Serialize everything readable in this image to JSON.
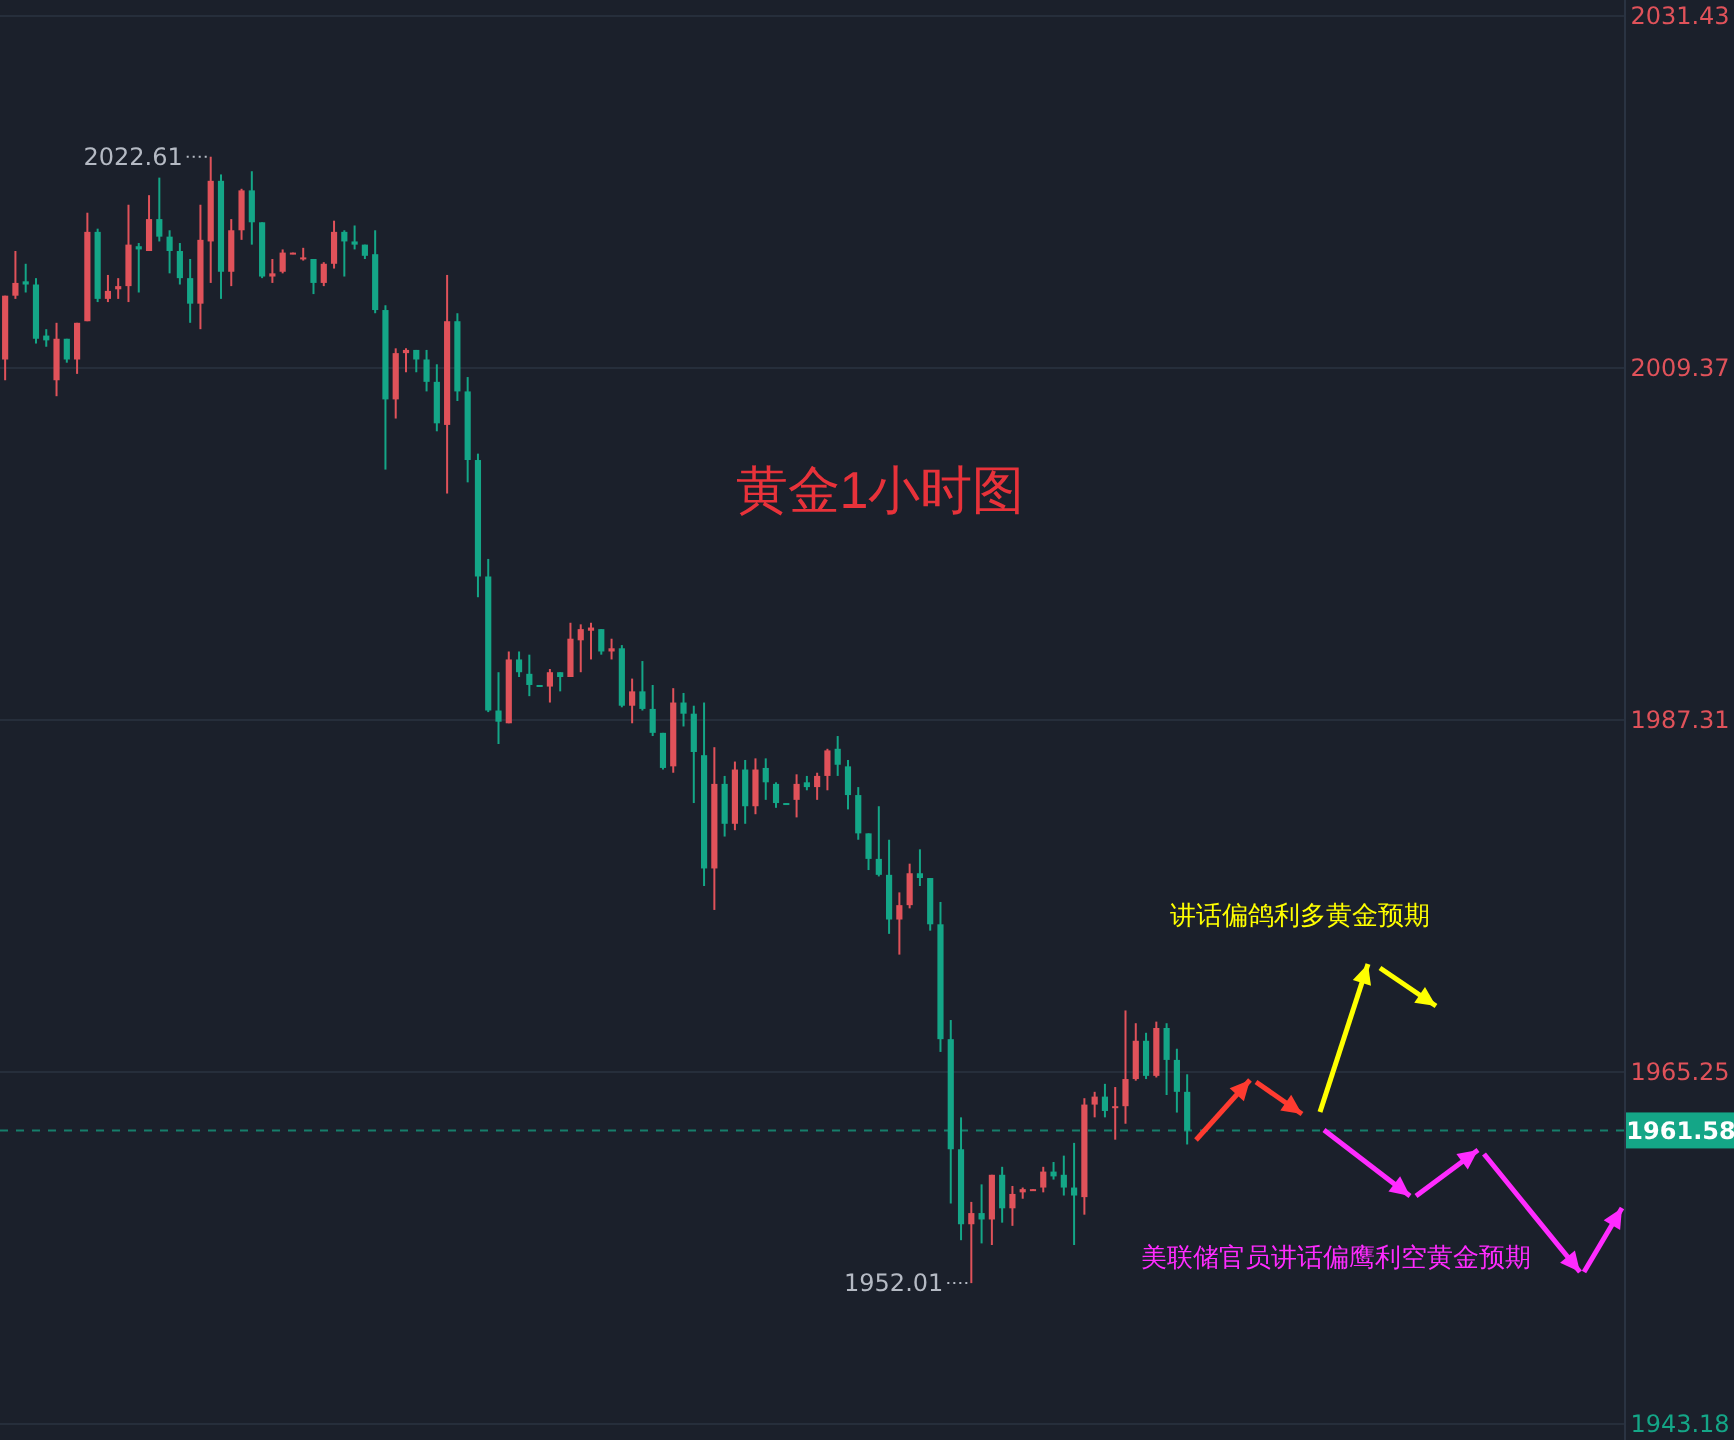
{
  "chart_data": {
    "type": "candlestick",
    "title": "黄金1小时图",
    "categories": [
      null,
      null,
      null,
      null,
      null,
      null,
      null,
      null,
      null,
      null,
      null,
      null,
      null,
      null,
      null,
      null,
      null,
      null,
      null,
      null,
      null,
      null,
      null,
      null,
      null,
      null,
      null,
      null,
      null,
      null,
      null,
      null,
      null,
      null,
      null,
      null,
      null,
      null,
      null,
      null,
      null,
      null,
      null,
      null,
      null,
      null,
      null,
      null,
      null,
      null,
      null,
      null,
      null,
      null,
      null,
      null,
      null,
      null,
      null,
      null,
      null,
      null,
      null,
      null,
      null,
      null,
      null,
      null,
      null,
      null,
      null,
      null,
      null,
      null,
      null,
      null,
      null,
      null,
      null,
      null,
      null,
      null,
      null,
      null,
      null,
      null,
      null,
      null,
      null,
      null,
      null,
      null,
      null,
      null,
      null,
      null,
      null,
      null,
      null,
      null,
      null,
      null,
      null,
      null,
      null,
      null,
      null,
      null,
      null,
      null,
      null,
      null,
      null,
      null,
      null,
      null,
      null,
      null,
      null,
      null,
      null,
      null,
      null,
      null,
      null,
      null,
      null,
      null,
      null,
      null,
      null,
      null,
      null,
      null,
      null,
      null,
      null,
      null,
      null,
      null,
      null,
      null,
      null,
      null,
      null,
      null,
      null,
      null,
      null,
      null,
      null,
      null,
      null,
      null,
      null,
      null,
      null,
      null
    ],
    "ohlc": [
      [
        2009.9,
        2013.9,
        2008.6,
        2013.9
      ],
      [
        2013.9,
        2016.7,
        2013.7,
        2014.7
      ],
      [
        2014.8,
        2015.9,
        2014.1,
        2014.6
      ],
      [
        2014.6,
        2015.0,
        2010.9,
        2011.2
      ],
      [
        2011.4,
        2011.8,
        2010.7,
        2011.1
      ],
      [
        2008.6,
        2012.2,
        2007.6,
        2011.2
      ],
      [
        2011.2,
        2011.2,
        2009.7,
        2009.9
      ],
      [
        2009.9,
        2012.2,
        2009.0,
        2012.2
      ],
      [
        2012.3,
        2019.1,
        2012.3,
        2017.9
      ],
      [
        2017.9,
        2018.1,
        2013.5,
        2013.7
      ],
      [
        2013.7,
        2015.2,
        2013.5,
        2014.2
      ],
      [
        2014.3,
        2015.0,
        2013.7,
        2014.5
      ],
      [
        2014.5,
        2019.6,
        2013.5,
        2017.1
      ],
      [
        2017.0,
        2017.2,
        2014.1,
        2016.8
      ],
      [
        2016.7,
        2020.2,
        2016.7,
        2018.7
      ],
      [
        2018.7,
        2021.3,
        2017.3,
        2017.6
      ],
      [
        2017.6,
        2018.0,
        2015.3,
        2016.7
      ],
      [
        2016.7,
        2017.2,
        2014.6,
        2015.0
      ],
      [
        2015.0,
        2016.2,
        2012.2,
        2013.4
      ],
      [
        2013.4,
        2019.6,
        2011.8,
        2017.4
      ],
      [
        2017.3,
        2022.61,
        2014.7,
        2021.1
      ],
      [
        2021.1,
        2021.5,
        2013.7,
        2015.4
      ],
      [
        2015.4,
        2018.7,
        2014.5,
        2018.0
      ],
      [
        2018.0,
        2020.6,
        2017.4,
        2020.5
      ],
      [
        2020.5,
        2021.7,
        2017.1,
        2018.5
      ],
      [
        2018.5,
        2018.5,
        2015.0,
        2015.1
      ],
      [
        2015.1,
        2016.2,
        2014.7,
        2015.3
      ],
      [
        2015.4,
        2016.8,
        2015.3,
        2016.6
      ],
      [
        2016.5,
        2016.6,
        2016.5,
        2016.6
      ],
      [
        2016.2,
        2016.9,
        2016.1,
        2016.3
      ],
      [
        2016.2,
        2016.2,
        2014.0,
        2014.7
      ],
      [
        2014.7,
        2016.0,
        2014.5,
        2015.9
      ],
      [
        2015.9,
        2018.6,
        2015.6,
        2017.9
      ],
      [
        2017.9,
        2018.0,
        2015.1,
        2017.3
      ],
      [
        2017.3,
        2018.3,
        2016.8,
        2017.1
      ],
      [
        2017.1,
        2017.1,
        2016.2,
        2016.4
      ],
      [
        2016.5,
        2018.0,
        2012.8,
        2013.0
      ],
      [
        2013.0,
        2013.3,
        2003.0,
        2007.4
      ],
      [
        2007.4,
        2010.6,
        2006.2,
        2010.3
      ],
      [
        2010.3,
        2010.6,
        2009.1,
        2010.5
      ],
      [
        2010.5,
        2010.5,
        2009.1,
        2009.9
      ],
      [
        2009.9,
        2010.5,
        2007.9,
        2008.5
      ],
      [
        2008.5,
        2009.6,
        2005.4,
        2005.9
      ],
      [
        2005.8,
        2015.2,
        2001.5,
        2012.3
      ],
      [
        2012.3,
        2012.8,
        2007.3,
        2007.9
      ],
      [
        2007.9,
        2008.8,
        2002.2,
        2003.6
      ],
      [
        2003.6,
        2004.0,
        1995.0,
        1996.3
      ],
      [
        1996.3,
        1997.4,
        1987.8,
        1987.9
      ],
      [
        1987.9,
        1990.3,
        1985.8,
        1987.2
      ],
      [
        1987.1,
        1991.6,
        1987.1,
        1991.1
      ],
      [
        1991.1,
        1991.6,
        1990.0,
        1990.3
      ],
      [
        1990.2,
        1991.4,
        1988.8,
        1989.5
      ],
      [
        1989.5,
        1989.5,
        1989.4,
        1989.4
      ],
      [
        1989.4,
        1990.5,
        1988.4,
        1990.3
      ],
      [
        1990.3,
        1990.3,
        1989.1,
        1990.0
      ],
      [
        1990.0,
        1993.4,
        1990.0,
        1992.4
      ],
      [
        1992.3,
        1993.3,
        1990.3,
        1993.0
      ],
      [
        1992.9,
        1993.4,
        1991.1,
        1993.1
      ],
      [
        1993.0,
        1993.0,
        1991.4,
        1991.6
      ],
      [
        1991.6,
        1992.4,
        1991.1,
        1991.8
      ],
      [
        1991.8,
        1992.0,
        1988.1,
        1988.2
      ],
      [
        1988.2,
        1989.9,
        1987.1,
        1989.1
      ],
      [
        1989.1,
        1991.0,
        1987.9,
        1988.0
      ],
      [
        1988.0,
        1989.5,
        1986.3,
        1986.5
      ],
      [
        1986.5,
        1986.5,
        1984.2,
        1984.3
      ],
      [
        1984.4,
        1989.3,
        1984.0,
        1988.4
      ],
      [
        1988.4,
        1989.0,
        1986.9,
        1987.7
      ],
      [
        1987.7,
        1988.2,
        1982.1,
        1985.3
      ],
      [
        1985.1,
        1988.4,
        1976.9,
        1978.0
      ],
      [
        1978.0,
        1985.6,
        1975.4,
        1983.3
      ],
      [
        1983.3,
        1983.8,
        1980.0,
        1980.8
      ],
      [
        1980.8,
        1984.7,
        1980.4,
        1984.2
      ],
      [
        1984.2,
        1984.8,
        1980.8,
        1981.9
      ],
      [
        1981.9,
        1984.9,
        1981.4,
        1984.2
      ],
      [
        1984.3,
        1984.9,
        1982.3,
        1983.4
      ],
      [
        1983.3,
        1983.4,
        1981.8,
        1982.1
      ],
      [
        1982.1,
        1982.1,
        1982.0,
        1982.0
      ],
      [
        1982.3,
        1983.9,
        1981.2,
        1983.3
      ],
      [
        1983.4,
        1983.8,
        1982.9,
        1983.1
      ],
      [
        1983.1,
        1984.0,
        1982.3,
        1983.8
      ],
      [
        1983.8,
        1985.5,
        1982.9,
        1985.4
      ],
      [
        1985.5,
        1986.3,
        1983.8,
        1984.5
      ],
      [
        1984.4,
        1984.8,
        1981.7,
        1982.6
      ],
      [
        1982.6,
        1983.1,
        1979.8,
        1980.2
      ],
      [
        1980.2,
        1980.2,
        1977.9,
        1978.6
      ],
      [
        1978.6,
        1981.9,
        1977.5,
        1977.6
      ],
      [
        1977.6,
        1979.8,
        1973.9,
        1974.8
      ],
      [
        1974.8,
        1976.5,
        1972.6,
        1975.7
      ],
      [
        1975.7,
        1978.3,
        1975.5,
        1977.7
      ],
      [
        1977.7,
        1979.2,
        1976.9,
        1977.4
      ],
      [
        1977.4,
        1977.4,
        1974.1,
        1974.5
      ],
      [
        1974.5,
        1975.9,
        1966.5,
        1967.3
      ],
      [
        1967.3,
        1968.5,
        1957.0,
        1960.4
      ],
      [
        1960.4,
        1962.4,
        1954.7,
        1955.7
      ],
      [
        1955.7,
        1957.1,
        1952.01,
        1956.4
      ],
      [
        1956.4,
        1958.2,
        1954.5,
        1956.0
      ],
      [
        1956.0,
        1958.8,
        1954.4,
        1958.8
      ],
      [
        1958.8,
        1959.3,
        1955.8,
        1956.7
      ],
      [
        1956.7,
        1958.1,
        1955.6,
        1957.6
      ],
      [
        1957.7,
        1958.0,
        1957.3,
        1957.9
      ],
      [
        1957.8,
        1957.9,
        1957.8,
        1957.9
      ],
      [
        1958.0,
        1959.3,
        1957.7,
        1959.0
      ],
      [
        1959.0,
        1959.6,
        1958.5,
        1958.7
      ],
      [
        1958.8,
        1960.0,
        1957.5,
        1958.0
      ],
      [
        1958.0,
        1960.8,
        1954.4,
        1957.5
      ],
      [
        1957.4,
        1963.6,
        1956.3,
        1963.2
      ],
      [
        1963.2,
        1964.0,
        1962.4,
        1963.7
      ],
      [
        1963.7,
        1964.5,
        1962.4,
        1962.8
      ],
      [
        1963.0,
        1964.3,
        1961.0,
        1963.1
      ],
      [
        1963.1,
        1969.1,
        1962.0,
        1964.8
      ],
      [
        1964.8,
        1968.3,
        1964.7,
        1967.2
      ],
      [
        1967.2,
        1967.7,
        1964.8,
        1965.0
      ],
      [
        1965.0,
        1968.4,
        1964.9,
        1968.0
      ],
      [
        1968.0,
        1968.3,
        1963.8,
        1966.0
      ],
      [
        1966.0,
        1966.7,
        1962.7,
        1964.0
      ],
      [
        1964.0,
        1965.1,
        1960.7,
        1961.58
      ],
      null,
      null,
      null,
      null,
      null,
      null,
      null,
      null,
      null,
      null,
      null,
      null,
      null,
      null,
      null,
      null,
      null,
      null,
      null,
      null,
      null,
      null,
      null,
      null,
      null,
      null,
      null,
      null,
      null,
      null,
      null,
      null,
      null,
      null,
      null,
      null,
      null,
      null,
      null,
      null,
      null,
      null
    ],
    "colors": [
      "#e0525a",
      "#e0525a",
      "#14a687",
      "#14a687",
      "#14a687",
      "#e0525a",
      "#14a687",
      "#e0525a",
      "#e0525a",
      "#14a687",
      "#e0525a",
      "#e0525a",
      "#e0525a",
      "#14a687",
      "#e0525a",
      "#14a687",
      "#14a687",
      "#14a687",
      "#14a687",
      "#e0525a",
      "#e0525a",
      "#14a687",
      "#e0525a",
      "#e0525a",
      "#14a687",
      "#14a687",
      "#e0525a",
      "#e0525a",
      "#e0525a",
      "#e0525a",
      "#14a687",
      "#e0525a",
      "#e0525a",
      "#14a687",
      "#14a687",
      "#14a687",
      "#14a687",
      "#14a687",
      "#e0525a",
      "#e0525a",
      "#14a687",
      "#14a687",
      "#14a687",
      "#e0525a",
      "#14a687",
      "#14a687",
      "#14a687",
      "#14a687",
      "#14a687",
      "#e0525a",
      "#14a687",
      "#14a687",
      "#14a687",
      "#e0525a",
      "#14a687",
      "#e0525a",
      "#e0525a",
      "#e0525a",
      "#14a687",
      "#e0525a",
      "#14a687",
      "#e0525a",
      "#14a687",
      "#14a687",
      "#14a687",
      "#e0525a",
      "#14a687",
      "#14a687",
      "#14a687",
      "#e0525a",
      "#14a687",
      "#e0525a",
      "#14a687",
      "#e0525a",
      "#14a687",
      "#14a687",
      "#14a687",
      "#e0525a",
      "#14a687",
      "#e0525a",
      "#e0525a",
      "#14a687",
      "#14a687",
      "#14a687",
      "#14a687",
      "#14a687",
      "#14a687",
      "#e0525a",
      "#e0525a",
      "#14a687",
      "#14a687",
      "#14a687",
      "#14a687",
      "#14a687",
      "#e0525a",
      "#14a687",
      "#e0525a",
      "#14a687",
      "#e0525a",
      "#e0525a",
      "#e0525a",
      "#e0525a",
      "#14a687",
      "#14a687",
      "#14a687",
      "#e0525a",
      "#e0525a",
      "#14a687",
      "#e0525a",
      "#e0525a",
      "#e0525a",
      "#14a687",
      "#e0525a",
      "#14a687",
      "#14a687",
      "#14a687",
      null,
      null,
      null,
      null,
      null,
      null,
      null,
      null,
      null,
      null,
      null,
      null,
      null,
      null,
      null,
      null,
      null,
      null,
      null,
      null,
      null,
      null,
      null,
      null,
      null,
      null,
      null,
      null,
      null,
      null,
      null,
      null,
      null,
      null,
      null,
      null,
      null,
      null,
      null,
      null,
      null,
      null
    ],
    "ylim": [
      1943.18,
      2031.43
    ],
    "yticks": [
      2031.43,
      2009.37,
      1987.31,
      1965.25,
      1943.18
    ],
    "grid": "y",
    "ref_lines": [
      {
        "axis": "y",
        "value": 1961.58,
        "label": "1961.58",
        "color": "#14a687",
        "line_style": "dashed"
      }
    ],
    "annotations": [
      "2022.61",
      "1952.01",
      "讲话偏鸽利多黄金预期",
      "美联储官员讲话偏鹰利空黄金预期"
    ]
  }
}
